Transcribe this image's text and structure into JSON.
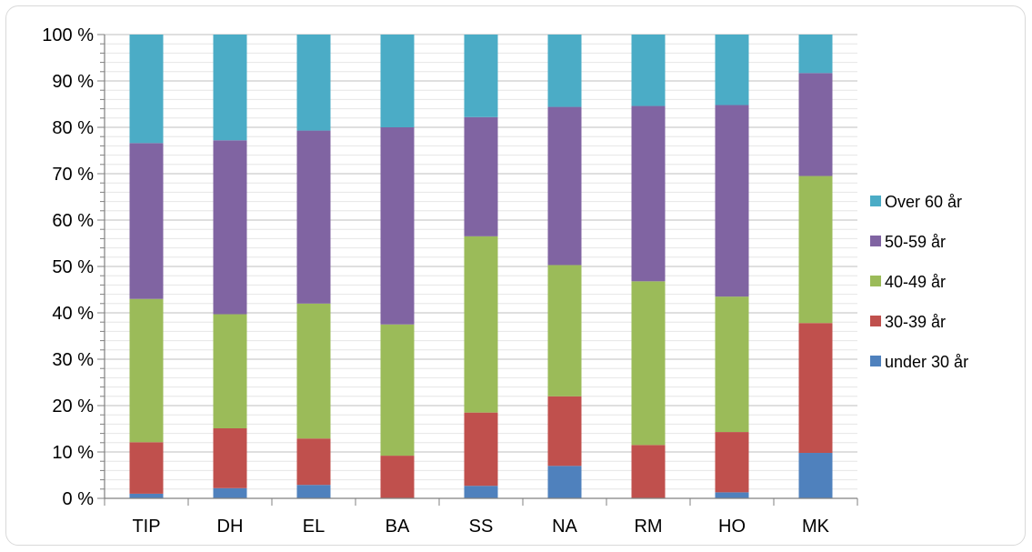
{
  "chart_data": {
    "type": "bar",
    "stacked": true,
    "percent": true,
    "title": "",
    "xlabel": "",
    "ylabel": "",
    "categories": [
      "TIP",
      "DH",
      "EL",
      "BA",
      "SS",
      "NA",
      "RM",
      "HO",
      "MK"
    ],
    "ylim": [
      0,
      100
    ],
    "yticks": [
      "0 %",
      "10 %",
      "20 %",
      "30 %",
      "40 %",
      "50 %",
      "60 %",
      "70 %",
      "80 %",
      "90 %",
      "100 %"
    ],
    "grid": true,
    "legend_position": "right",
    "series": [
      {
        "name": "under 30 år",
        "color": "#4f81bd",
        "values": [
          1.0,
          2.2,
          2.9,
          0.0,
          2.7,
          7.0,
          0.0,
          1.3,
          9.8
        ]
      },
      {
        "name": "30-39 år",
        "color": "#c0504d",
        "values": [
          11.1,
          12.9,
          10.0,
          9.2,
          15.8,
          15.0,
          11.5,
          13.0,
          28.0
        ]
      },
      {
        "name": "40-49 år",
        "color": "#9bbb59",
        "values": [
          30.9,
          24.6,
          29.1,
          28.3,
          38.0,
          28.3,
          35.3,
          29.2,
          31.7
        ]
      },
      {
        "name": "50-59 år",
        "color": "#8064a2",
        "values": [
          33.6,
          37.5,
          37.3,
          42.5,
          25.7,
          34.1,
          37.8,
          41.3,
          22.2
        ]
      },
      {
        "name": "Over 60 år",
        "color": "#4bacc6",
        "values": [
          23.4,
          22.8,
          20.7,
          20.0,
          17.8,
          15.6,
          15.4,
          15.2,
          8.3
        ]
      }
    ]
  }
}
